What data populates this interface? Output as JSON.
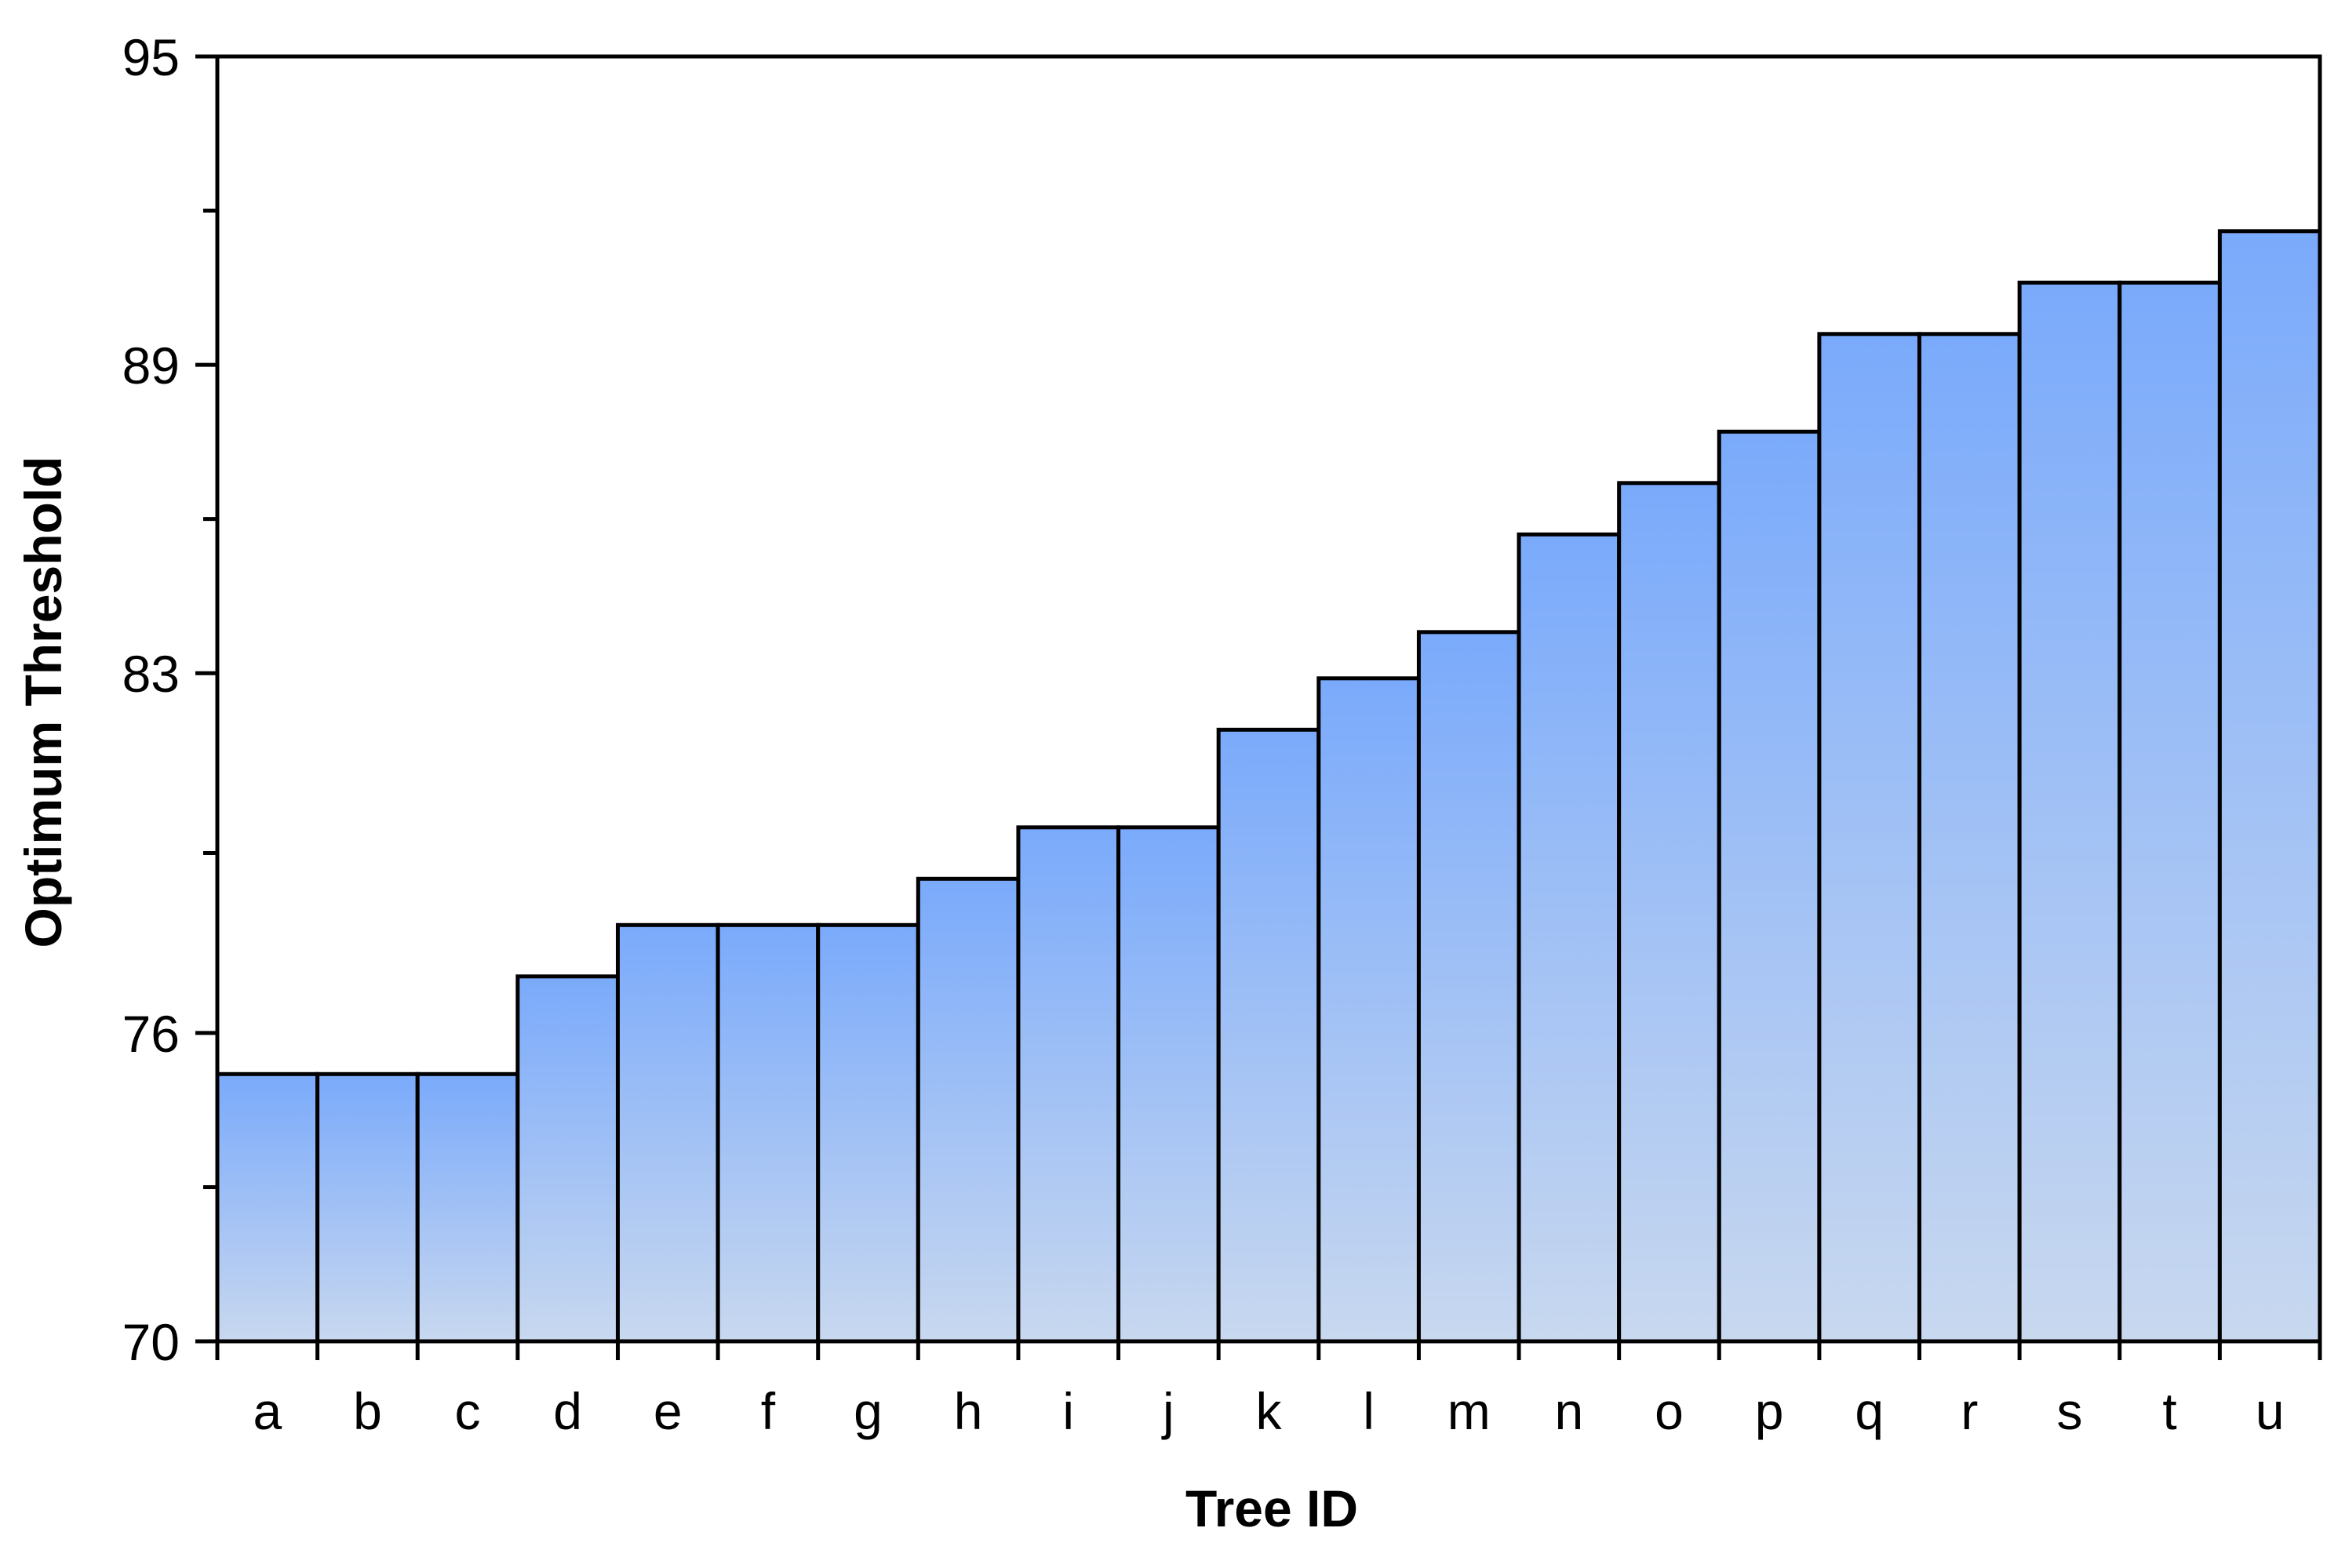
{
  "chart_data": {
    "type": "bar",
    "title": "",
    "xlabel": "Tree ID",
    "ylabel": "Optimum Threshold",
    "categories": [
      "a",
      "b",
      "c",
      "d",
      "e",
      "f",
      "g",
      "h",
      "i",
      "j",
      "k",
      "l",
      "m",
      "n",
      "o",
      "p",
      "q",
      "r",
      "s",
      "t",
      "u"
    ],
    "values": [
      75.2,
      75.2,
      75.2,
      77.1,
      78.1,
      78.1,
      78.1,
      79.0,
      80.0,
      80.0,
      81.9,
      82.9,
      83.8,
      85.7,
      86.7,
      87.7,
      89.6,
      89.6,
      90.6,
      90.6,
      91.6
    ],
    "ylim": [
      70,
      95
    ],
    "yticks": [
      70,
      76,
      83,
      89,
      95
    ],
    "y_minor_ticks": [
      73,
      79.5,
      86,
      92
    ],
    "grid": false,
    "legend": "none",
    "bar_gradient_top": "#7aaafb",
    "bar_gradient_bottom": "#c8d8ef",
    "bar_border": "#000000"
  }
}
